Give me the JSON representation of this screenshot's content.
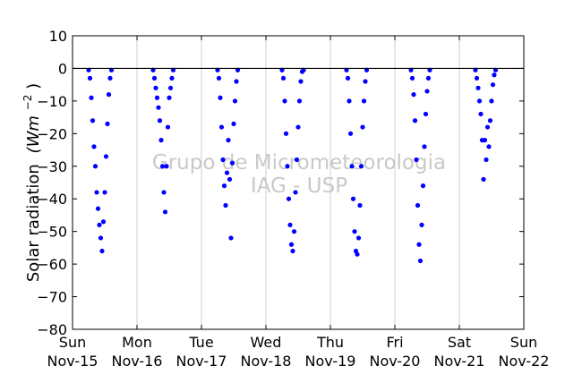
{
  "chart_data": {
    "type": "scatter",
    "title": "",
    "ylabel": "Solar radiation (W m^-2)",
    "ylabel_parts": {
      "main": "Solar radiation",
      "unit_base": "(Wm",
      "unit_exp": "−2",
      "unit_close": ")"
    },
    "xlabel": "",
    "ylim": [
      -80,
      10
    ],
    "yticks": [
      10,
      0,
      -10,
      -20,
      -30,
      -40,
      -50,
      -60,
      -70,
      -80
    ],
    "xlim": [
      "2015-11-15T00:00",
      "2015-11-22T00:00"
    ],
    "xticks": [
      {
        "date": "2015-11-15",
        "day": "Sun",
        "label": "Nov-15"
      },
      {
        "date": "2015-11-16",
        "day": "Mon",
        "label": "Nov-16"
      },
      {
        "date": "2015-11-17",
        "day": "Tue",
        "label": "Nov-17"
      },
      {
        "date": "2015-11-18",
        "day": "Wed",
        "label": "Nov-18"
      },
      {
        "date": "2015-11-19",
        "day": "Thu",
        "label": "Nov-19"
      },
      {
        "date": "2015-11-20",
        "day": "Fri",
        "label": "Nov-20"
      },
      {
        "date": "2015-11-21",
        "day": "Sat",
        "label": "Nov-21"
      },
      {
        "date": "2015-11-22",
        "day": "Sun",
        "label": "Nov-22"
      }
    ],
    "grid": "vertical",
    "reference_line_y": 0,
    "marker_color": "#0000ff",
    "watermark": [
      "Grupo de Micrometeorologia",
      "IAG - USP"
    ],
    "series": [
      {
        "points": [
          [
            "2015-11-15T06:00",
            -0.5
          ],
          [
            "2015-11-15T06:30",
            -3
          ],
          [
            "2015-11-15T07:00",
            -9
          ],
          [
            "2015-11-15T07:30",
            -16
          ],
          [
            "2015-11-15T08:00",
            -24
          ],
          [
            "2015-11-15T08:30",
            -30
          ],
          [
            "2015-11-15T09:00",
            -38
          ],
          [
            "2015-11-15T09:30",
            -43
          ],
          [
            "2015-11-15T10:00",
            -48
          ],
          [
            "2015-11-15T10:30",
            -52
          ],
          [
            "2015-11-15T11:00",
            -56
          ],
          [
            "2015-11-15T11:30",
            -47
          ],
          [
            "2015-11-15T12:00",
            -38
          ],
          [
            "2015-11-15T12:30",
            -27
          ],
          [
            "2015-11-15T13:00",
            -17
          ],
          [
            "2015-11-15T13:30",
            -8
          ],
          [
            "2015-11-15T14:00",
            -3
          ],
          [
            "2015-11-15T14:30",
            -0.5
          ],
          [
            "2015-11-16T06:00",
            -0.5
          ],
          [
            "2015-11-16T06:30",
            -3
          ],
          [
            "2015-11-16T07:00",
            -6
          ],
          [
            "2015-11-16T07:30",
            -9
          ],
          [
            "2015-11-16T08:00",
            -12
          ],
          [
            "2015-11-16T08:30",
            -16
          ],
          [
            "2015-11-16T09:00",
            -22
          ],
          [
            "2015-11-16T09:30",
            -30
          ],
          [
            "2015-11-16T10:00",
            -38
          ],
          [
            "2015-11-16T10:30",
            -44
          ],
          [
            "2015-11-16T11:00",
            -30
          ],
          [
            "2015-11-16T11:30",
            -18
          ],
          [
            "2015-11-16T12:00",
            -9
          ],
          [
            "2015-11-16T12:30",
            -6
          ],
          [
            "2015-11-16T13:00",
            -3
          ],
          [
            "2015-11-16T13:30",
            -0.5
          ],
          [
            "2015-11-17T06:00",
            -0.5
          ],
          [
            "2015-11-17T06:30",
            -3
          ],
          [
            "2015-11-17T07:00",
            -9
          ],
          [
            "2015-11-17T07:30",
            -18
          ],
          [
            "2015-11-17T08:00",
            -28
          ],
          [
            "2015-11-17T08:30",
            -36
          ],
          [
            "2015-11-17T09:00",
            -42
          ],
          [
            "2015-11-17T09:30",
            -32
          ],
          [
            "2015-11-17T10:00",
            -22
          ],
          [
            "2015-11-17T10:30",
            -34
          ],
          [
            "2015-11-17T11:00",
            -52
          ],
          [
            "2015-11-17T11:30",
            -29
          ],
          [
            "2015-11-17T12:00",
            -17
          ],
          [
            "2015-11-17T12:30",
            -10
          ],
          [
            "2015-11-17T13:00",
            -4
          ],
          [
            "2015-11-17T13:30",
            -0.5
          ],
          [
            "2015-11-18T06:00",
            -0.5
          ],
          [
            "2015-11-18T06:30",
            -3
          ],
          [
            "2015-11-18T07:00",
            -10
          ],
          [
            "2015-11-18T07:30",
            -20
          ],
          [
            "2015-11-18T08:00",
            -30
          ],
          [
            "2015-11-18T08:30",
            -40
          ],
          [
            "2015-11-18T09:00",
            -48
          ],
          [
            "2015-11-18T09:30",
            -54
          ],
          [
            "2015-11-18T10:00",
            -56
          ],
          [
            "2015-11-18T10:30",
            -50
          ],
          [
            "2015-11-18T11:00",
            -38
          ],
          [
            "2015-11-18T11:30",
            -28
          ],
          [
            "2015-11-18T12:00",
            -18
          ],
          [
            "2015-11-18T12:30",
            -10
          ],
          [
            "2015-11-18T13:00",
            -4
          ],
          [
            "2015-11-18T13:30",
            -1
          ],
          [
            "2015-11-18T14:00",
            -0.5
          ],
          [
            "2015-11-19T06:00",
            -0.5
          ],
          [
            "2015-11-19T06:30",
            -3
          ],
          [
            "2015-11-19T07:00",
            -10
          ],
          [
            "2015-11-19T07:30",
            -20
          ],
          [
            "2015-11-19T08:00",
            -30
          ],
          [
            "2015-11-19T08:30",
            -40
          ],
          [
            "2015-11-19T09:00",
            -50
          ],
          [
            "2015-11-19T09:30",
            -56
          ],
          [
            "2015-11-19T10:00",
            -57
          ],
          [
            "2015-11-19T10:30",
            -52
          ],
          [
            "2015-11-19T11:00",
            -42
          ],
          [
            "2015-11-19T11:30",
            -30
          ],
          [
            "2015-11-19T12:00",
            -18
          ],
          [
            "2015-11-19T12:30",
            -10
          ],
          [
            "2015-11-19T13:00",
            -4
          ],
          [
            "2015-11-19T13:30",
            -0.5
          ],
          [
            "2015-11-20T06:00",
            -0.5
          ],
          [
            "2015-11-20T06:30",
            -3
          ],
          [
            "2015-11-20T07:00",
            -8
          ],
          [
            "2015-11-20T07:30",
            -16
          ],
          [
            "2015-11-20T08:00",
            -28
          ],
          [
            "2015-11-20T08:30",
            -42
          ],
          [
            "2015-11-20T09:00",
            -54
          ],
          [
            "2015-11-20T09:30",
            -59
          ],
          [
            "2015-11-20T10:00",
            -48
          ],
          [
            "2015-11-20T10:30",
            -36
          ],
          [
            "2015-11-20T11:00",
            -24
          ],
          [
            "2015-11-20T11:30",
            -14
          ],
          [
            "2015-11-20T12:00",
            -7
          ],
          [
            "2015-11-20T12:30",
            -3
          ],
          [
            "2015-11-20T13:00",
            -0.5
          ],
          [
            "2015-11-21T06:00",
            -0.5
          ],
          [
            "2015-11-21T06:30",
            -3
          ],
          [
            "2015-11-21T07:00",
            -6
          ],
          [
            "2015-11-21T07:30",
            -10
          ],
          [
            "2015-11-21T08:00",
            -14
          ],
          [
            "2015-11-21T08:30",
            -22
          ],
          [
            "2015-11-21T09:00",
            -34
          ],
          [
            "2015-11-21T09:30",
            -22
          ],
          [
            "2015-11-21T10:00",
            -28
          ],
          [
            "2015-11-21T10:30",
            -18
          ],
          [
            "2015-11-21T11:00",
            -24
          ],
          [
            "2015-11-21T11:30",
            -16
          ],
          [
            "2015-11-21T12:00",
            -10
          ],
          [
            "2015-11-21T12:30",
            -5
          ],
          [
            "2015-11-21T13:00",
            -2
          ],
          [
            "2015-11-21T13:30",
            -0.5
          ]
        ]
      }
    ]
  }
}
